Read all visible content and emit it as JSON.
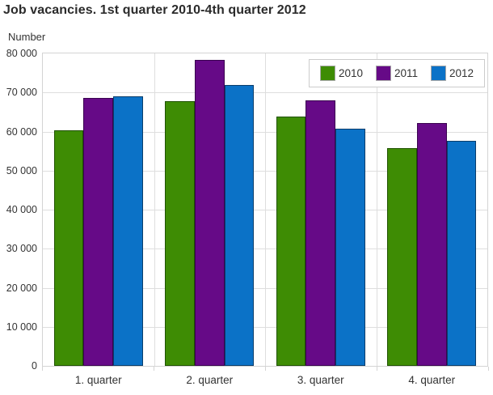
{
  "chart_data": {
    "type": "bar",
    "title": "Job vacancies. 1st quarter 2010-4th quarter 2012",
    "y_axis_label": "Number",
    "categories": [
      "1. quarter",
      "2. quarter",
      "3. quarter",
      "4. quarter"
    ],
    "series": [
      {
        "name": "2010",
        "color": "#3e8c04",
        "border_color": "#1f5200",
        "values": [
          60400,
          67800,
          63800,
          55800
        ]
      },
      {
        "name": "2011",
        "color": "#660a87",
        "border_color": "#3a0350",
        "values": [
          68700,
          78400,
          68000,
          62100
        ]
      },
      {
        "name": "2012",
        "color": "#0b72c7",
        "border_color": "#0a3d6b",
        "values": [
          69100,
          72000,
          60700,
          57700
        ]
      }
    ],
    "ylim": [
      0,
      80000
    ],
    "y_tick_interval": 10000,
    "y_tick_labels": [
      "0",
      "10 000",
      "20 000",
      "30 000",
      "40 000",
      "50 000",
      "60 000",
      "70 000",
      "80 000"
    ],
    "grid": true,
    "legend_position": "top-right"
  },
  "style": {
    "grid_color": "#dedede",
    "axis_border_color": "#d4d4d4",
    "text_color": "#333333",
    "title_color": "#2b2b2b",
    "legend_border_color": "#cccccc",
    "swatch_border_color": "#a8a8a8"
  }
}
